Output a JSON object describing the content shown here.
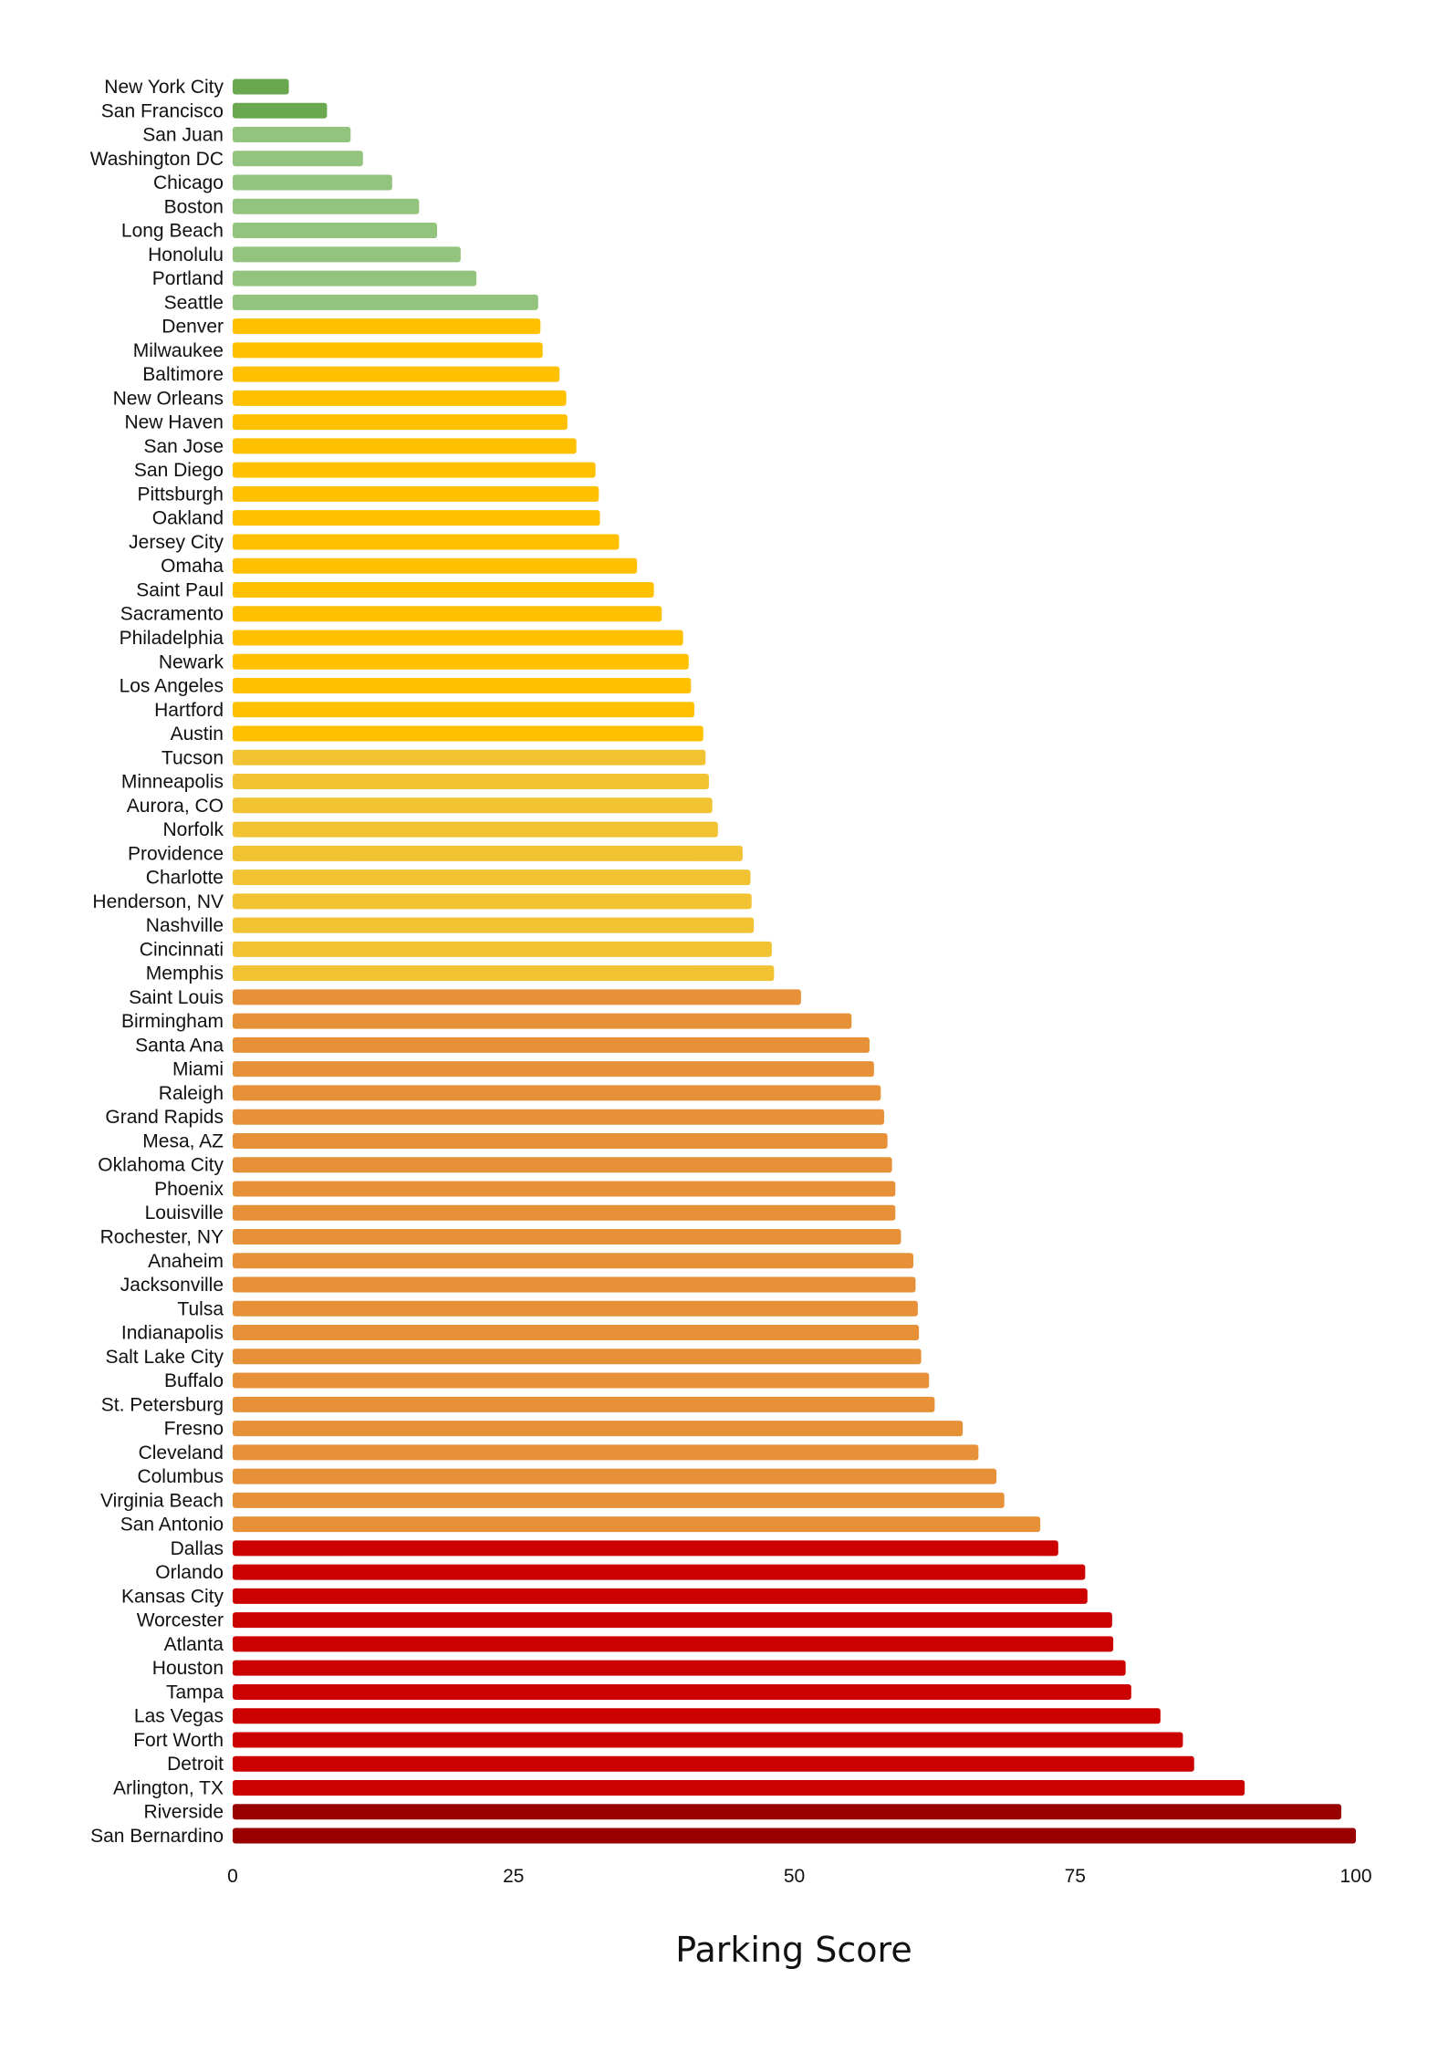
{
  "chart_data": {
    "type": "bar",
    "orientation": "horizontal",
    "title": "",
    "xlabel": "Parking Score",
    "ylabel": "",
    "xlim": [
      0,
      100
    ],
    "xticks": [
      0,
      25,
      50,
      75,
      100
    ],
    "grid": false,
    "legend": "none",
    "colors": {
      "dark_green": "#6aa84f",
      "light_green": "#93c47d",
      "amber": "#ffc000",
      "gold": "#f1c232",
      "orange": "#e69138",
      "red": "#cc0000",
      "dark_red": "#990000"
    },
    "categories": [
      "New York City",
      "San Francisco",
      "San Juan",
      "Washington DC",
      "Chicago",
      "Boston",
      "Long Beach",
      "Honolulu",
      "Portland",
      "Seattle",
      "Denver",
      "Milwaukee",
      "Baltimore",
      "New Orleans",
      "New Haven",
      "San Jose",
      "San Diego",
      "Pittsburgh",
      "Oakland",
      "Jersey City",
      "Omaha",
      "Saint Paul",
      "Sacramento",
      "Philadelphia",
      "Newark",
      "Los Angeles",
      "Hartford",
      "Austin",
      "Tucson",
      "Minneapolis",
      "Aurora, CO",
      "Norfolk",
      "Providence",
      "Charlotte",
      "Henderson, NV",
      "Nashville",
      "Cincinnati",
      "Memphis",
      "Saint Louis",
      "Birmingham",
      "Santa Ana",
      "Miami",
      "Raleigh",
      "Grand Rapids",
      "Mesa, AZ",
      "Oklahoma City",
      "Phoenix",
      "Louisville",
      "Rochester, NY",
      "Anaheim",
      "Jacksonville",
      "Tulsa",
      "Indianapolis",
      "Salt Lake City",
      "Buffalo",
      "St. Petersburg",
      "Fresno",
      "Cleveland",
      "Columbus",
      "Virginia Beach",
      "San Antonio",
      "Dallas",
      "Orlando",
      "Kansas City",
      "Worcester",
      "Atlanta",
      "Houston",
      "Tampa",
      "Las Vegas",
      "Fort Worth",
      "Detroit",
      "Arlington, TX",
      "Riverside",
      "San Bernardino"
    ],
    "values": [
      5.0,
      8.4,
      10.5,
      11.6,
      14.2,
      16.6,
      18.2,
      20.3,
      21.7,
      27.2,
      27.4,
      27.6,
      29.1,
      29.7,
      29.8,
      30.6,
      32.3,
      32.6,
      32.7,
      34.4,
      36.0,
      37.5,
      38.2,
      40.1,
      40.6,
      40.8,
      41.1,
      41.9,
      42.1,
      42.4,
      42.7,
      43.2,
      45.4,
      46.1,
      46.2,
      46.4,
      48.0,
      48.2,
      50.6,
      55.1,
      56.7,
      57.1,
      57.7,
      58.0,
      58.3,
      58.7,
      59.0,
      59.0,
      59.5,
      60.6,
      60.8,
      61.0,
      61.1,
      61.3,
      62.0,
      62.5,
      65.0,
      66.4,
      68.0,
      68.7,
      71.9,
      73.5,
      75.9,
      76.1,
      78.3,
      78.4,
      79.5,
      80.0,
      82.6,
      84.6,
      85.6,
      90.1,
      98.7,
      100.0
    ],
    "bar_color_groups": [
      "dark_green",
      "dark_green",
      "light_green",
      "light_green",
      "light_green",
      "light_green",
      "light_green",
      "light_green",
      "light_green",
      "light_green",
      "amber",
      "amber",
      "amber",
      "amber",
      "amber",
      "amber",
      "amber",
      "amber",
      "amber",
      "amber",
      "amber",
      "amber",
      "amber",
      "amber",
      "amber",
      "amber",
      "amber",
      "amber",
      "gold",
      "gold",
      "gold",
      "gold",
      "gold",
      "gold",
      "gold",
      "gold",
      "gold",
      "gold",
      "orange",
      "orange",
      "orange",
      "orange",
      "orange",
      "orange",
      "orange",
      "orange",
      "orange",
      "orange",
      "orange",
      "orange",
      "orange",
      "orange",
      "orange",
      "orange",
      "orange",
      "orange",
      "orange",
      "orange",
      "orange",
      "orange",
      "orange",
      "red",
      "red",
      "red",
      "red",
      "red",
      "red",
      "red",
      "red",
      "red",
      "red",
      "red",
      "dark_red",
      "dark_red"
    ]
  }
}
